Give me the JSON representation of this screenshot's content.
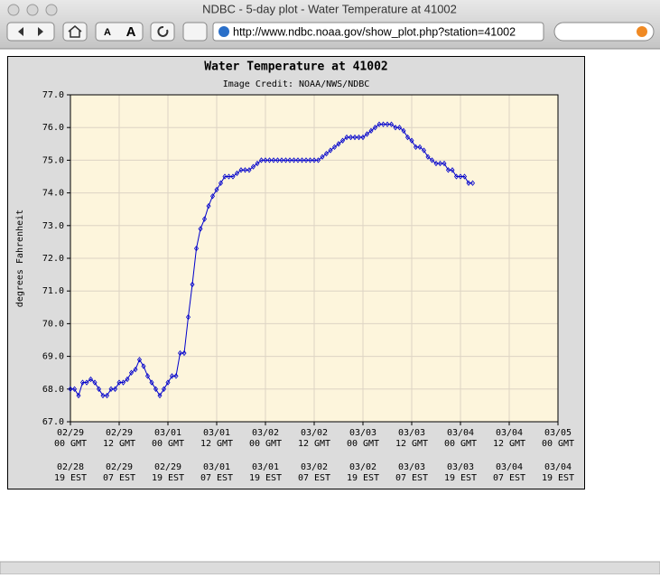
{
  "window": {
    "title": "NDBC - 5-day plot - Water Temperature at 41002",
    "url": "http://www.ndbc.noaa.gov/show_plot.php?station=41002",
    "font_small": "A",
    "font_large": "A"
  },
  "chart_data": {
    "type": "line",
    "title": "Water Temperature at 41002",
    "subtitle": "Image Credit: NOAA/NWS/NDBC",
    "y_label": "degrees Fahrenheit",
    "color": "#0000cc",
    "grid": true,
    "x": [
      0,
      1,
      2,
      3,
      4,
      5,
      6,
      7,
      8,
      9,
      10,
      11,
      12,
      13,
      14,
      15,
      16,
      17,
      18,
      19,
      20,
      21,
      22,
      23,
      24,
      25,
      26,
      27,
      28,
      29,
      30,
      31,
      32,
      33,
      34,
      35,
      36,
      37,
      38,
      39,
      40,
      41,
      42,
      43,
      44,
      45,
      46,
      47,
      48,
      49,
      50,
      51,
      52,
      53,
      54,
      55,
      56,
      57,
      58,
      59,
      60,
      61,
      62,
      63,
      64,
      65,
      66,
      67,
      68,
      69,
      70,
      71,
      72,
      73,
      74,
      75,
      76,
      77,
      78,
      79,
      80,
      81,
      82,
      83,
      84,
      85,
      86,
      87,
      88,
      89,
      90,
      91,
      92,
      93,
      94,
      95,
      96,
      97,
      98,
      99
    ],
    "values": [
      68.0,
      68.0,
      67.8,
      68.2,
      68.2,
      68.3,
      68.2,
      68.0,
      67.8,
      67.8,
      68.0,
      68.0,
      68.2,
      68.2,
      68.3,
      68.5,
      68.6,
      68.9,
      68.7,
      68.4,
      68.2,
      68.0,
      67.8,
      68.0,
      68.2,
      68.4,
      68.4,
      69.1,
      69.1,
      70.2,
      71.2,
      72.3,
      72.9,
      73.2,
      73.6,
      73.9,
      74.1,
      74.3,
      74.5,
      74.5,
      74.5,
      74.6,
      74.7,
      74.7,
      74.7,
      74.8,
      74.9,
      75.0,
      75.0,
      75.0,
      75.0,
      75.0,
      75.0,
      75.0,
      75.0,
      75.0,
      75.0,
      75.0,
      75.0,
      75.0,
      75.0,
      75.0,
      75.1,
      75.2,
      75.3,
      75.4,
      75.5,
      75.6,
      75.7,
      75.7,
      75.7,
      75.7,
      75.7,
      75.8,
      75.9,
      76.0,
      76.1,
      76.1,
      76.1,
      76.1,
      76.0,
      76.0,
      75.9,
      75.7,
      75.6,
      75.4,
      75.4,
      75.3,
      75.1,
      75.0,
      74.9,
      74.9,
      74.9,
      74.7,
      74.7,
      74.5,
      74.5,
      74.5,
      74.3,
      74.3
    ],
    "xlim": [
      0,
      120
    ],
    "ylim": [
      67,
      77
    ],
    "yticks": [
      {
        "value": 67,
        "label": "67.0"
      },
      {
        "value": 68,
        "label": "68.0"
      },
      {
        "value": 69,
        "label": "69.0"
      },
      {
        "value": 70,
        "label": "70.0"
      },
      {
        "value": 71,
        "label": "71.0"
      },
      {
        "value": 72,
        "label": "72.0"
      },
      {
        "value": 73,
        "label": "73.0"
      },
      {
        "value": 74,
        "label": "74.0"
      },
      {
        "value": 75,
        "label": "75.0"
      },
      {
        "value": 76,
        "label": "76.0"
      },
      {
        "value": 77,
        "label": "77.0"
      }
    ],
    "xticks": [
      {
        "value": 0,
        "label": "02/29",
        "hour": "00 GMT",
        "est_date": "02/28",
        "est_hour": "19 EST"
      },
      {
        "value": 12,
        "label": "02/29",
        "hour": "12 GMT",
        "est_date": "02/29",
        "est_hour": "07 EST"
      },
      {
        "value": 24,
        "label": "03/01",
        "hour": "00 GMT",
        "est_date": "02/29",
        "est_hour": "19 EST"
      },
      {
        "value": 36,
        "label": "03/01",
        "hour": "12 GMT",
        "est_date": "03/01",
        "est_hour": "07 EST"
      },
      {
        "value": 48,
        "label": "03/02",
        "hour": "00 GMT",
        "est_date": "03/01",
        "est_hour": "19 EST"
      },
      {
        "value": 60,
        "label": "03/02",
        "hour": "12 GMT",
        "est_date": "03/02",
        "est_hour": "07 EST"
      },
      {
        "value": 72,
        "label": "03/03",
        "hour": "00 GMT",
        "est_date": "03/02",
        "est_hour": "19 EST"
      },
      {
        "value": 84,
        "label": "03/03",
        "hour": "12 GMT",
        "est_date": "03/03",
        "est_hour": "07 EST"
      },
      {
        "value": 96,
        "label": "03/04",
        "hour": "00 GMT",
        "est_date": "03/03",
        "est_hour": "19 EST"
      },
      {
        "value": 108,
        "label": "03/04",
        "hour": "12 GMT",
        "est_date": "03/04",
        "est_hour": "07 EST"
      },
      {
        "value": 120,
        "label": "03/05",
        "hour": "00 GMT",
        "est_date": "03/04",
        "est_hour": "19 EST"
      }
    ]
  }
}
